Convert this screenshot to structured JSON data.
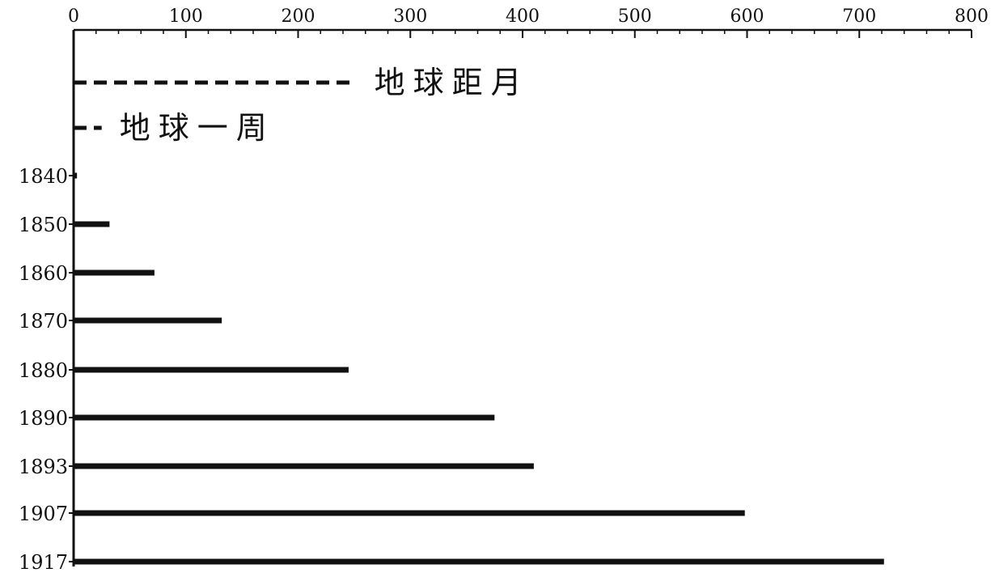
{
  "chart_data": {
    "type": "bar",
    "orientation": "horizontal",
    "categories": [
      "1840",
      "1850",
      "1860",
      "1870",
      "1880",
      "1890",
      "1893",
      "1907",
      "1917"
    ],
    "values": [
      3,
      32,
      72,
      132,
      245,
      375,
      410,
      598,
      722
    ],
    "xlim": [
      0,
      800
    ],
    "x_ticks": [
      "0",
      "100",
      "200",
      "300",
      "400",
      "500",
      "600",
      "700",
      "800"
    ],
    "x_axis_position": "top",
    "reference_lines": [
      {
        "label": "地球距月",
        "value": 252,
        "style": "dashed"
      },
      {
        "label": "地球一周",
        "value": 25,
        "style": "dashed"
      }
    ],
    "grid": false,
    "title": "",
    "xlabel": "",
    "ylabel": ""
  }
}
